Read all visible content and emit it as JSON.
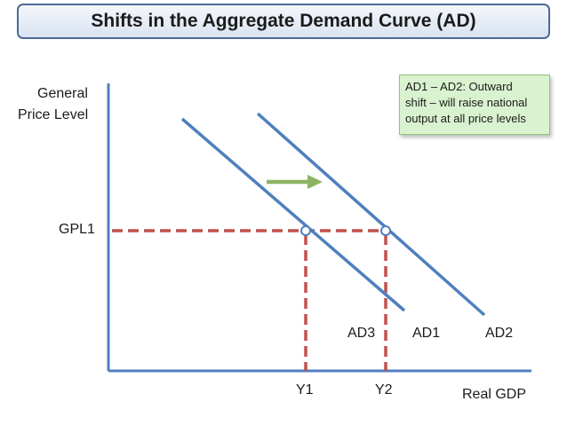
{
  "title": "Shifts in the Aggregate Demand Curve (AD)",
  "note": {
    "lines": [
      "AD1 – AD2: Outward",
      "shift – will raise national",
      "output at all price levels"
    ]
  },
  "axes": {
    "y_label_line1": "General",
    "y_label_line2": "Price Level",
    "x_label": "Real GDP"
  },
  "levels": {
    "gpl1": "GPL1",
    "y1": "Y1",
    "y2": "Y2"
  },
  "curves": {
    "ad1": "AD1",
    "ad2": "AD2",
    "ad3": "AD3"
  },
  "colors": {
    "axis": "#4f7fbf",
    "curve": "#4f7fbf",
    "guide": "#c0504d",
    "arrow": "#8db463",
    "note_fill": "#d9f2cf",
    "title_border": "#4a6a94"
  }
}
